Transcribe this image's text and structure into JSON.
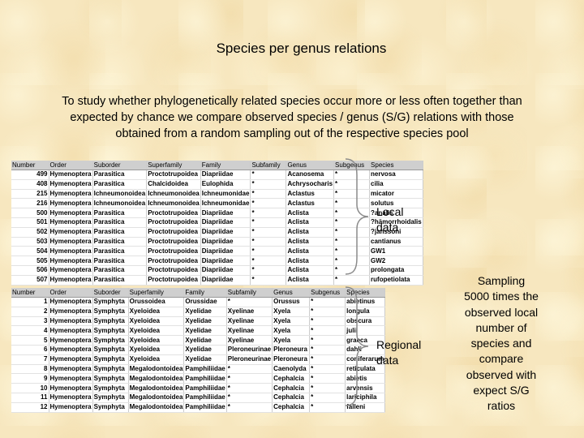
{
  "title": "Species per genus relations",
  "intro": [
    "To study whether phylogenetically related species occur more or less often together than",
    "expected by chance we compare observed species / genus (S/G) relations with those",
    "obtained from a random sampling out of the respective species pool"
  ],
  "local_table": {
    "headers": [
      "Number",
      "Order",
      "Suborder",
      "Superfamily",
      "Family",
      "Subfamily",
      "Genus",
      "Subgenus",
      "Species"
    ],
    "rows": [
      [
        "499",
        "Hymenoptera",
        "Parasitica",
        "Proctotrupoidea",
        "Diapriidae",
        "*",
        "Acanosema",
        "*",
        "nervosa"
      ],
      [
        "408",
        "Hymenoptera",
        "Parasitica",
        "Chalcidoidea",
        "Eulophida",
        "*",
        "Achrysocharis",
        "*",
        "cilia"
      ],
      [
        "215",
        "Hymenoptera",
        "Ichneumonoidea",
        "Ichneumonoidea",
        "Ichneumonidae",
        "*",
        "Aclastus",
        "*",
        "micator"
      ],
      [
        "216",
        "Hymenoptera",
        "Ichneumonoidea",
        "Ichneumonoidea",
        "Ichneumonidae",
        "*",
        "Aclastus",
        "*",
        "solutus"
      ],
      [
        "500",
        "Hymenoptera",
        "Parasitica",
        "Proctotrupoidea",
        "Diapriidae",
        "*",
        "Aclista",
        "*",
        "?analis"
      ],
      [
        "501",
        "Hymenoptera",
        "Parasitica",
        "Proctotrupoidea",
        "Diapriidae",
        "*",
        "Aclista",
        "*",
        "?hämorrhoidalis"
      ],
      [
        "502",
        "Hymenoptera",
        "Parasitica",
        "Proctotrupoidea",
        "Diapriidae",
        "*",
        "Aclista",
        "*",
        "?janssoni"
      ],
      [
        "503",
        "Hymenoptera",
        "Parasitica",
        "Proctotrupoidea",
        "Diapriidae",
        "*",
        "Aclista",
        "*",
        "cantianus"
      ],
      [
        "504",
        "Hymenoptera",
        "Parasitica",
        "Proctotrupoidea",
        "Diapriidae",
        "*",
        "Aclista",
        "*",
        "GW1"
      ],
      [
        "505",
        "Hymenoptera",
        "Parasitica",
        "Proctotrupoidea",
        "Diapriidae",
        "*",
        "Aclista",
        "*",
        "GW2"
      ],
      [
        "506",
        "Hymenoptera",
        "Parasitica",
        "Proctotrupoidea",
        "Diapriidae",
        "*",
        "Aclista",
        "*",
        "prolongata"
      ],
      [
        "507",
        "Hymenoptera",
        "Parasitica",
        "Proctotrupoidea",
        "Diapriidae",
        "*",
        "Aclista",
        "*",
        "rufopetiolata"
      ]
    ]
  },
  "regional_table": {
    "headers": [
      "Number",
      "Order",
      "Suborder",
      "Superfamily",
      "Family",
      "Subfamily",
      "Genus",
      "Subgenus",
      "Species"
    ],
    "rows": [
      [
        "1",
        "Hymenoptera",
        "Symphyta",
        "Orussoidea",
        "Orussidae",
        "*",
        "Orussus",
        "*",
        "abietinus"
      ],
      [
        "2",
        "Hymenoptera",
        "Symphyta",
        "Xyeloidea",
        "Xyelidae",
        "Xyelinae",
        "Xyela",
        "*",
        "longula"
      ],
      [
        "3",
        "Hymenoptera",
        "Symphyta",
        "Xyeloidea",
        "Xyelidae",
        "Xyelinae",
        "Xyela",
        "*",
        "obscura"
      ],
      [
        "4",
        "Hymenoptera",
        "Symphyta",
        "Xyeloidea",
        "Xyelidae",
        "Xyelinae",
        "Xyela",
        "*",
        "julii"
      ],
      [
        "5",
        "Hymenoptera",
        "Symphyta",
        "Xyeloidea",
        "Xyelidae",
        "Xyelinae",
        "Xyela",
        "*",
        "graeca"
      ],
      [
        "6",
        "Hymenoptera",
        "Symphyta",
        "Xyeloidea",
        "Xyelidae",
        "Pleroneurinae",
        "Pleroneura",
        "*",
        "dahli"
      ],
      [
        "7",
        "Hymenoptera",
        "Symphyta",
        "Xyeloidea",
        "Xyelidae",
        "Pleroneurinae",
        "Pleroneura",
        "*",
        "coniferarum"
      ],
      [
        "8",
        "Hymenoptera",
        "Symphyta",
        "Megalodontoidea",
        "Pamphiliidae",
        "*",
        "Caenolyda",
        "*",
        "reticulata"
      ],
      [
        "9",
        "Hymenoptera",
        "Symphyta",
        "Megalodontoidea",
        "Pamphiliidae",
        "*",
        "Cephalcia",
        "*",
        "abietis"
      ],
      [
        "10",
        "Hymenoptera",
        "Symphyta",
        "Megalodontoidea",
        "Pamphiliidae",
        "*",
        "Cephalcia",
        "*",
        "arvensis"
      ],
      [
        "11",
        "Hymenoptera",
        "Symphyta",
        "Megalodontoidea",
        "Pamphiliidae",
        "*",
        "Cephalcia",
        "*",
        "lariciphila"
      ],
      [
        "12",
        "Hymenoptera",
        "Symphyta",
        "Megalodontoidea",
        "Pamphiliidae",
        "*",
        "Cephalcia",
        "*",
        "falleni"
      ]
    ]
  },
  "labels": {
    "local": [
      "Local",
      "data"
    ],
    "regional": [
      "Regional",
      "data"
    ]
  },
  "sampling_note": [
    "Sampling",
    "5000 times the",
    "observed local",
    "number of",
    "species and",
    "compare",
    "observed with",
    "expect S/G",
    "ratios"
  ]
}
